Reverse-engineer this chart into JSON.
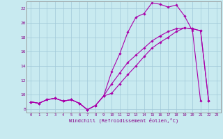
{
  "background_color": "#c8eaf0",
  "grid_color": "#a0c8d8",
  "line_color": "#aa00aa",
  "marker_color": "#aa00aa",
  "xlabel": "Windchill (Refroidissement éolien,°C)",
  "xlabel_color": "#880088",
  "ylabel_color": "#880088",
  "xlim": [
    -0.5,
    23.5
  ],
  "ylim": [
    7.5,
    23.0
  ],
  "yticks": [
    8,
    10,
    12,
    14,
    16,
    18,
    20,
    22
  ],
  "xticks": [
    0,
    1,
    2,
    3,
    4,
    5,
    6,
    7,
    8,
    9,
    10,
    11,
    12,
    13,
    14,
    15,
    16,
    17,
    18,
    19,
    20,
    21,
    22,
    23
  ],
  "line1_x": [
    0,
    1,
    2,
    3,
    4,
    5,
    6,
    7,
    8,
    9,
    10,
    11,
    12,
    13,
    14,
    15,
    16,
    17,
    18,
    19,
    20,
    21
  ],
  "line1_y": [
    9.0,
    8.8,
    9.3,
    9.5,
    9.1,
    9.3,
    8.8,
    7.9,
    8.5,
    9.8,
    13.2,
    15.7,
    18.7,
    20.8,
    21.3,
    22.8,
    22.6,
    22.2,
    22.5,
    21.0,
    18.9,
    9.1
  ],
  "line2_x": [
    0,
    1,
    2,
    3,
    4,
    5,
    6,
    7,
    8,
    9,
    10,
    11,
    12,
    13,
    14,
    15,
    16,
    17,
    18,
    19,
    20,
    21,
    22
  ],
  "line2_y": [
    9.0,
    8.8,
    9.3,
    9.5,
    9.1,
    9.3,
    8.8,
    7.9,
    8.5,
    9.8,
    11.5,
    13.0,
    14.5,
    15.5,
    16.5,
    17.5,
    18.2,
    18.8,
    19.2,
    19.3,
    19.2,
    18.9,
    9.1
  ],
  "line3_x": [
    0,
    1,
    2,
    3,
    4,
    5,
    6,
    7,
    8,
    9,
    10,
    11,
    12,
    13,
    14,
    15,
    16,
    17,
    18,
    19,
    20,
    21,
    22
  ],
  "line3_y": [
    9.0,
    8.8,
    9.3,
    9.5,
    9.1,
    9.3,
    8.8,
    7.9,
    8.5,
    9.8,
    10.2,
    11.5,
    12.8,
    14.0,
    15.3,
    16.5,
    17.3,
    18.0,
    18.8,
    19.3,
    19.2,
    18.9,
    9.1
  ]
}
